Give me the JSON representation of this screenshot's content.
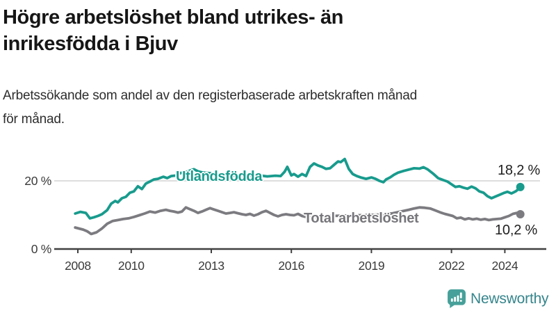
{
  "header": {
    "title": "Högre arbetslöshet bland utrikes- än\ninrikesfödda i Bjuv",
    "subtitle": "Arbetssökande som andel av den registerbaserade arbetskraften månad\nför månad."
  },
  "chart_data": {
    "type": "line",
    "title": "Högre arbetslöshet bland utrikes- än inrikesfödda i Bjuv",
    "subtitle": "Arbetssökande som andel av den registerbaserade arbetskraften månad för månad.",
    "unit": "%",
    "grid": "horizontal-20-only",
    "legend_position": "inline-on-lines",
    "x_axis": {
      "ticks": [
        2008,
        2010,
        2013,
        2016,
        2019,
        2022,
        2024
      ],
      "range": [
        2007.9,
        2025.3
      ]
    },
    "y_axis": {
      "ticks": [
        {
          "value": 0,
          "label": "0 %"
        },
        {
          "value": 20,
          "label": "20 %"
        }
      ],
      "range": [
        0,
        28
      ]
    },
    "series": [
      {
        "name": "Utlandsfödda",
        "color": "#189B8D",
        "end_label": "18,2 %",
        "end_value": 18.2,
        "points": [
          [
            2007.9,
            10.4
          ],
          [
            2008.1,
            10.9
          ],
          [
            2008.3,
            10.6
          ],
          [
            2008.45,
            9.0
          ],
          [
            2008.6,
            9.3
          ],
          [
            2008.75,
            9.7
          ],
          [
            2008.9,
            10.2
          ],
          [
            2009.1,
            11.4
          ],
          [
            2009.25,
            13.3
          ],
          [
            2009.4,
            14.1
          ],
          [
            2009.5,
            13.7
          ],
          [
            2009.65,
            14.9
          ],
          [
            2009.8,
            15.3
          ],
          [
            2009.95,
            16.5
          ],
          [
            2010.1,
            16.9
          ],
          [
            2010.25,
            18.4
          ],
          [
            2010.4,
            17.6
          ],
          [
            2010.55,
            19.2
          ],
          [
            2010.7,
            19.8
          ],
          [
            2010.85,
            20.4
          ],
          [
            2011.0,
            20.6
          ],
          [
            2011.2,
            21.2
          ],
          [
            2011.35,
            20.8
          ],
          [
            2011.5,
            21.4
          ],
          [
            2011.7,
            21.6
          ],
          [
            2011.85,
            22.3
          ],
          [
            2012.0,
            22.4
          ],
          [
            2012.2,
            23.0
          ],
          [
            2012.35,
            23.4
          ],
          [
            2012.5,
            22.8
          ],
          [
            2012.7,
            22.4
          ],
          [
            2013.0,
            22.2
          ],
          [
            2013.3,
            21.9
          ],
          [
            2013.6,
            21.7
          ],
          [
            2013.9,
            21.5
          ],
          [
            2014.2,
            21.8
          ],
          [
            2014.5,
            21.4
          ],
          [
            2014.8,
            21.6
          ],
          [
            2015.1,
            21.3
          ],
          [
            2015.4,
            21.5
          ],
          [
            2015.6,
            21.4
          ],
          [
            2015.75,
            22.7
          ],
          [
            2015.85,
            24.1
          ],
          [
            2016.0,
            21.6
          ],
          [
            2016.1,
            22.0
          ],
          [
            2016.25,
            21.2
          ],
          [
            2016.4,
            22.0
          ],
          [
            2016.55,
            21.4
          ],
          [
            2016.7,
            24.1
          ],
          [
            2016.85,
            25.1
          ],
          [
            2017.0,
            24.5
          ],
          [
            2017.15,
            24.1
          ],
          [
            2017.3,
            23.5
          ],
          [
            2017.45,
            23.7
          ],
          [
            2017.6,
            24.7
          ],
          [
            2017.75,
            25.7
          ],
          [
            2017.85,
            25.5
          ],
          [
            2018.0,
            26.4
          ],
          [
            2018.15,
            23.5
          ],
          [
            2018.3,
            22.0
          ],
          [
            2018.45,
            21.4
          ],
          [
            2018.6,
            21.0
          ],
          [
            2018.8,
            20.6
          ],
          [
            2019.0,
            21.0
          ],
          [
            2019.15,
            20.6
          ],
          [
            2019.3,
            20.0
          ],
          [
            2019.45,
            19.6
          ],
          [
            2019.55,
            20.4
          ],
          [
            2019.7,
            21.0
          ],
          [
            2019.85,
            21.8
          ],
          [
            2020.0,
            22.4
          ],
          [
            2020.2,
            22.9
          ],
          [
            2020.4,
            23.3
          ],
          [
            2020.6,
            23.7
          ],
          [
            2020.8,
            23.6
          ],
          [
            2020.95,
            24.0
          ],
          [
            2021.1,
            23.4
          ],
          [
            2021.3,
            22.2
          ],
          [
            2021.5,
            20.8
          ],
          [
            2021.7,
            20.2
          ],
          [
            2021.85,
            19.8
          ],
          [
            2022.0,
            19.0
          ],
          [
            2022.15,
            18.2
          ],
          [
            2022.3,
            18.4
          ],
          [
            2022.45,
            18.0
          ],
          [
            2022.6,
            17.7
          ],
          [
            2022.75,
            18.3
          ],
          [
            2022.9,
            17.8
          ],
          [
            2023.05,
            16.9
          ],
          [
            2023.2,
            16.5
          ],
          [
            2023.35,
            15.5
          ],
          [
            2023.5,
            14.9
          ],
          [
            2023.65,
            15.4
          ],
          [
            2023.8,
            15.9
          ],
          [
            2023.95,
            16.4
          ],
          [
            2024.1,
            16.8
          ],
          [
            2024.25,
            16.3
          ],
          [
            2024.4,
            16.9
          ],
          [
            2024.5,
            17.5
          ],
          [
            2024.58,
            18.2
          ]
        ]
      },
      {
        "name": "Total arbetslöshet",
        "color": "#7B7B80",
        "end_label": "10,2 %",
        "end_value": 10.2,
        "points": [
          [
            2007.9,
            6.3
          ],
          [
            2008.2,
            5.7
          ],
          [
            2008.35,
            5.2
          ],
          [
            2008.5,
            4.4
          ],
          [
            2008.7,
            4.9
          ],
          [
            2008.9,
            6.0
          ],
          [
            2009.1,
            7.4
          ],
          [
            2009.3,
            8.2
          ],
          [
            2009.5,
            8.5
          ],
          [
            2009.7,
            8.8
          ],
          [
            2009.9,
            9.0
          ],
          [
            2010.1,
            9.4
          ],
          [
            2010.3,
            9.9
          ],
          [
            2010.5,
            10.4
          ],
          [
            2010.7,
            11.0
          ],
          [
            2010.9,
            10.7
          ],
          [
            2011.1,
            11.2
          ],
          [
            2011.3,
            11.5
          ],
          [
            2011.45,
            11.2
          ],
          [
            2011.6,
            11.0
          ],
          [
            2011.75,
            10.7
          ],
          [
            2011.9,
            11.0
          ],
          [
            2012.05,
            12.2
          ],
          [
            2012.2,
            11.7
          ],
          [
            2012.35,
            11.2
          ],
          [
            2012.5,
            10.6
          ],
          [
            2012.65,
            11.0
          ],
          [
            2012.8,
            11.5
          ],
          [
            2012.95,
            12.0
          ],
          [
            2013.1,
            11.6
          ],
          [
            2013.25,
            11.2
          ],
          [
            2013.4,
            10.8
          ],
          [
            2013.55,
            10.4
          ],
          [
            2013.7,
            10.6
          ],
          [
            2013.85,
            10.8
          ],
          [
            2014.0,
            10.5
          ],
          [
            2014.15,
            10.2
          ],
          [
            2014.3,
            10.0
          ],
          [
            2014.45,
            10.3
          ],
          [
            2014.6,
            9.8
          ],
          [
            2014.75,
            10.2
          ],
          [
            2014.9,
            10.8
          ],
          [
            2015.05,
            11.2
          ],
          [
            2015.2,
            10.6
          ],
          [
            2015.35,
            10.0
          ],
          [
            2015.5,
            9.6
          ],
          [
            2015.65,
            10.0
          ],
          [
            2015.8,
            10.2
          ],
          [
            2015.95,
            10.0
          ],
          [
            2016.1,
            9.9
          ],
          [
            2016.25,
            10.3
          ],
          [
            2016.4,
            9.7
          ],
          [
            2016.55,
            9.4
          ],
          [
            2016.7,
            9.2
          ],
          [
            2016.85,
            9.4
          ],
          [
            2017.1,
            9.5
          ],
          [
            2017.5,
            9.7
          ],
          [
            2018.0,
            9.8
          ],
          [
            2018.5,
            9.9
          ],
          [
            2019.0,
            10.0
          ],
          [
            2019.5,
            10.2
          ],
          [
            2019.8,
            10.5
          ],
          [
            2020.1,
            11.0
          ],
          [
            2020.4,
            11.5
          ],
          [
            2020.6,
            11.9
          ],
          [
            2020.8,
            12.2
          ],
          [
            2021.0,
            12.1
          ],
          [
            2021.2,
            11.9
          ],
          [
            2021.4,
            11.3
          ],
          [
            2021.6,
            10.7
          ],
          [
            2021.75,
            10.3
          ],
          [
            2021.9,
            10.0
          ],
          [
            2022.05,
            9.7
          ],
          [
            2022.2,
            9.0
          ],
          [
            2022.35,
            9.2
          ],
          [
            2022.5,
            8.7
          ],
          [
            2022.65,
            9.0
          ],
          [
            2022.8,
            8.7
          ],
          [
            2022.95,
            8.9
          ],
          [
            2023.1,
            8.6
          ],
          [
            2023.25,
            8.8
          ],
          [
            2023.4,
            8.5
          ],
          [
            2023.55,
            8.7
          ],
          [
            2023.7,
            8.8
          ],
          [
            2023.85,
            8.9
          ],
          [
            2024.0,
            9.3
          ],
          [
            2024.15,
            9.7
          ],
          [
            2024.3,
            10.3
          ],
          [
            2024.45,
            10.6
          ],
          [
            2024.58,
            10.2
          ]
        ]
      }
    ],
    "colors": {
      "axis": "#404040",
      "gridline": "#d4d4d4",
      "tick_label": "#3a3a3a"
    }
  },
  "footer": {
    "brand": "Newsworthy",
    "brand_color": "#35858C",
    "icon": "bar-chart-speech-bubble-icon",
    "icon_color": "#47A09A"
  }
}
